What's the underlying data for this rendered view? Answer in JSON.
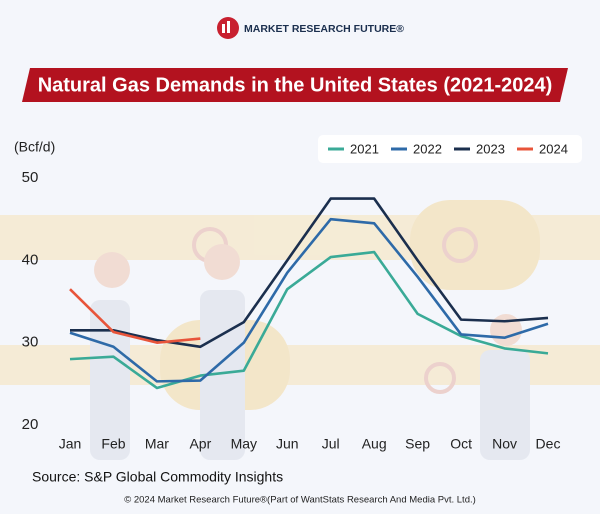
{
  "header": {
    "logo": "MARKET RESEARCH FUTURE®"
  },
  "chart_data": {
    "type": "line",
    "title": "Natural Gas Demands in the United States (2021-2024)",
    "y_label": "(Bcf/d)",
    "categories": [
      "Jan",
      "Feb",
      "Mar",
      "Apr",
      "May",
      "Jun",
      "Jul",
      "Aug",
      "Sep",
      "Oct",
      "Nov",
      "Dec"
    ],
    "series": [
      {
        "name": "2021",
        "color": "#3aaa97",
        "values": [
          28.0,
          28.3,
          24.5,
          26.0,
          26.6,
          36.5,
          40.4,
          41.0,
          33.5,
          30.8,
          29.3,
          28.7
        ]
      },
      {
        "name": "2022",
        "color": "#2e6aa8",
        "values": [
          31.2,
          29.5,
          25.3,
          25.4,
          30.0,
          38.5,
          45.0,
          44.5,
          38.0,
          31.0,
          30.6,
          32.3
        ]
      },
      {
        "name": "2023",
        "color": "#1b2f4e",
        "values": [
          31.5,
          31.5,
          30.3,
          29.5,
          32.5,
          40.0,
          47.5,
          47.5,
          40.0,
          32.8,
          32.6,
          33.0
        ]
      },
      {
        "name": "2024",
        "color": "#e8543a",
        "values": [
          36.5,
          31.3,
          30.0,
          30.5,
          null,
          null,
          null,
          null,
          null,
          null,
          null,
          null
        ]
      }
    ],
    "ylim": [
      20,
      50
    ],
    "yticks": [
      20,
      30,
      40,
      50
    ],
    "legend": "top-right",
    "source": "Source: S&P Global Commodity Insights"
  },
  "footer": "© 2024 Market Research Future®(Part of WantStats Research And Media Pvt. Ltd.)"
}
